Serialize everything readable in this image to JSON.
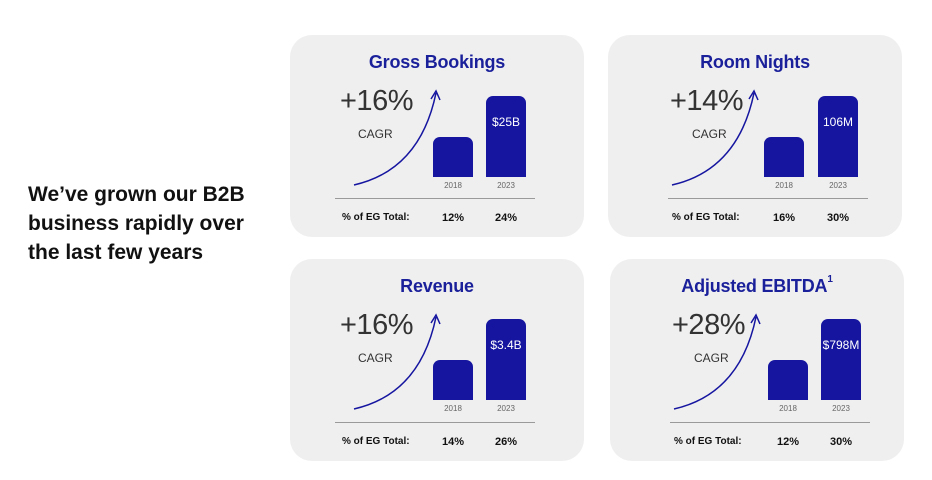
{
  "headline": "We’ve grown our B2B business rapidly over the last few years",
  "colors": {
    "accent": "#1515a0",
    "title": "#1a1f9a",
    "card_bg": "#efefef"
  },
  "share_label": "% of EG Total:",
  "cagr_label": "CAGR",
  "cards": [
    {
      "title": "Gross Bookings",
      "superscript": "",
      "cagr": "+16%",
      "years": [
        "2018",
        "2023"
      ],
      "value_2023": "$25B",
      "shares": [
        "12%",
        "24%"
      ]
    },
    {
      "title": "Room Nights",
      "superscript": "",
      "cagr": "+14%",
      "years": [
        "2018",
        "2023"
      ],
      "value_2023": "106M",
      "shares": [
        "16%",
        "30%"
      ]
    },
    {
      "title": "Revenue",
      "superscript": "",
      "cagr": "+16%",
      "years": [
        "2018",
        "2023"
      ],
      "value_2023": "$3.4B",
      "shares": [
        "14%",
        "26%"
      ]
    },
    {
      "title": "Adjusted EBITDA",
      "superscript": "1",
      "cagr": "+28%",
      "years": [
        "2018",
        "2023"
      ],
      "value_2023": "$798M",
      "shares": [
        "12%",
        "30%"
      ]
    }
  ]
}
